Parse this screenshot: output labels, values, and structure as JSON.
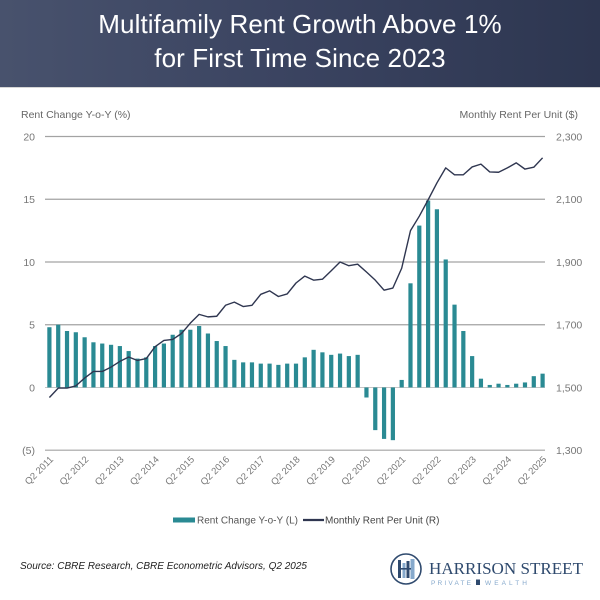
{
  "header": {
    "title_line1": "Multifamily Rent Growth Above 1%",
    "title_line2": "for First Time Since 2023"
  },
  "colors": {
    "header_bg_left": "#48526d",
    "header_bg_right": "#2d3650",
    "bar": "#2a8a93",
    "line": "#2f3650",
    "gridline": "#a3a3a3",
    "tick_text": "#777777",
    "logo_navy": "#2f4a6e",
    "logo_light_blue": "#86a9cc"
  },
  "chart_data": {
    "type": "bar",
    "title": "Multifamily Rent Growth Above 1% for First Time Since 2023",
    "xlabel": "",
    "ylabel": "Rent Change Y-o-Y (%)",
    "ylabel_right": "Monthly Rent Per Unit ($)",
    "ylim": [
      -5,
      20
    ],
    "ylim_right": [
      1300,
      2300
    ],
    "grid": true,
    "quarters_per_tick": 4,
    "x_tick_labels": [
      "Q2 2011",
      "Q2 2012",
      "Q2 2013",
      "Q2 2014",
      "Q2 2015",
      "Q2 2016",
      "Q2 2017",
      "Q2 2018",
      "Q2 2019",
      "Q2 2020",
      "Q2 2021",
      "Q2 2022",
      "Q2 2023",
      "Q2 2024",
      "Q2 2025"
    ],
    "y_ticks": [
      {
        "value": 20,
        "label": "20"
      },
      {
        "value": 15,
        "label": "15"
      },
      {
        "value": 10,
        "label": "10"
      },
      {
        "value": 5,
        "label": "5"
      },
      {
        "value": 0,
        "label": "0"
      },
      {
        "value": -5,
        "label": "(5)"
      }
    ],
    "y_ticks_right": [
      {
        "value": 2300,
        "label": "2,300"
      },
      {
        "value": 2100,
        "label": "2,100"
      },
      {
        "value": 1900,
        "label": "1,900"
      },
      {
        "value": 1700,
        "label": "1,700"
      },
      {
        "value": 1500,
        "label": "1,500"
      },
      {
        "value": 1300,
        "label": "1,300"
      }
    ],
    "series": [
      {
        "name": "Rent Change Y-o-Y (L)",
        "type": "bar",
        "axis": "left",
        "values": [
          4.8,
          5.0,
          4.5,
          4.4,
          4.0,
          3.6,
          3.5,
          3.4,
          3.3,
          2.9,
          2.3,
          2.4,
          3.3,
          3.5,
          4.2,
          4.6,
          4.6,
          4.9,
          4.3,
          3.7,
          3.3,
          2.2,
          2.0,
          2.0,
          1.9,
          1.9,
          1.8,
          1.9,
          1.9,
          2.4,
          3.0,
          2.8,
          2.6,
          2.7,
          2.5,
          2.6,
          -0.8,
          -3.4,
          -4.1,
          -4.2,
          0.6,
          8.3,
          12.9,
          14.9,
          14.2,
          10.2,
          6.6,
          4.5,
          2.5,
          0.7,
          0.2,
          0.3,
          0.2,
          0.3,
          0.4,
          0.9,
          1.1
        ]
      },
      {
        "name": "Monthly Rent Per Unit (R)",
        "type": "line",
        "axis": "right",
        "values": [
          1468,
          1498,
          1498,
          1505,
          1530,
          1551,
          1551,
          1565,
          1583,
          1597,
          1586,
          1592,
          1630,
          1650,
          1653,
          1672,
          1705,
          1733,
          1725,
          1727,
          1762,
          1772,
          1758,
          1762,
          1797,
          1808,
          1790,
          1798,
          1833,
          1855,
          1842,
          1845,
          1872,
          1900,
          1888,
          1893,
          1868,
          1842,
          1810,
          1817,
          1880,
          2000,
          2046,
          2098,
          2152,
          2200,
          2178,
          2178,
          2203,
          2212,
          2187,
          2186,
          2200,
          2216,
          2196,
          2202,
          2232
        ]
      }
    ],
    "legend": {
      "position": "bottom",
      "entries": [
        {
          "label": "Rent Change Y-o-Y (L)",
          "marker": "bar"
        },
        {
          "label": "Monthly Rent Per Unit (R)",
          "marker": "line"
        }
      ]
    }
  },
  "footer": {
    "source": "Source: CBRE Research, CBRE Econometric Advisors, Q2 2025",
    "logo": {
      "icon": "building-in-circle-icon",
      "name": "HARRISON STREET",
      "tagline_left": "PRIVATE",
      "tagline_right": "WEALTH"
    }
  }
}
